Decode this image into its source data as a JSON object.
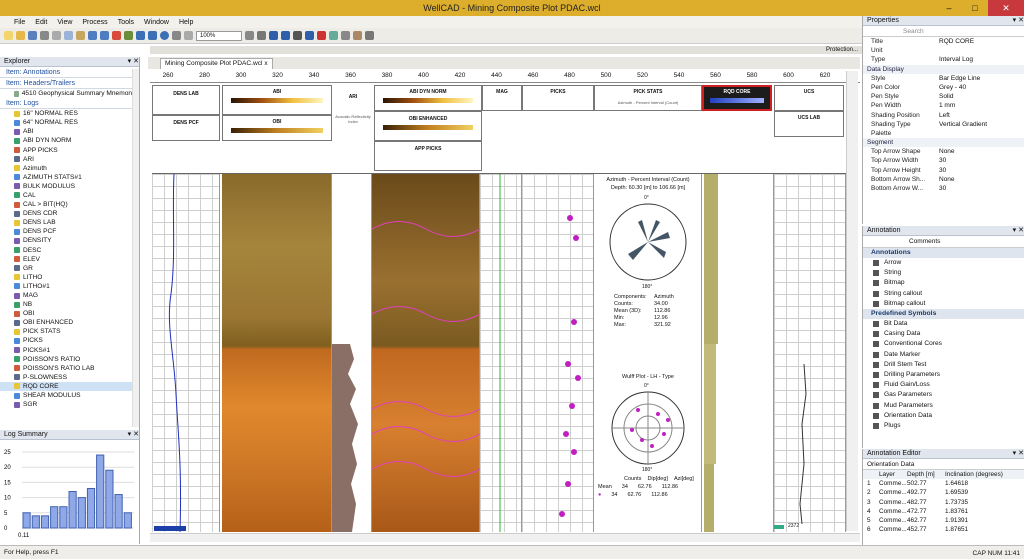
{
  "app": {
    "title": "WellCAD - Mining Composite Plot PDAC.wcl",
    "window_controls": [
      "–",
      "□",
      "✕"
    ]
  },
  "menu": [
    "File",
    "Edit",
    "View",
    "Process",
    "Tools",
    "Window",
    "Help"
  ],
  "toolbar": {
    "zoom": "100%",
    "protection": "Protection..."
  },
  "document": {
    "tab": "Mining Composite Plot PDAC.wcl",
    "close": "x"
  },
  "ruler": [
    "260",
    "280",
    "300",
    "320",
    "340",
    "360",
    "380",
    "400",
    "420",
    "440",
    "460",
    "480",
    "500",
    "520",
    "540",
    "560",
    "580",
    "600",
    "620"
  ],
  "explorer": {
    "title": "Explorer",
    "sections": {
      "annotations": "Item: Annotations",
      "headers": "Item: Headers/Trailers",
      "header_item": "4510 Geophysical Summary Mnemoni...",
      "logs": "Item: Logs"
    },
    "logs": [
      "16\" NORMAL RES",
      "64\" NORMAL RES",
      "ABI",
      "ABI DYN NORM",
      "APP PICKS",
      "ARI",
      "Azimuth",
      "AZIMUTH STATS#1",
      "BULK MODULUS",
      "CAL",
      "CAL > BIT(HQ)",
      "DENS CDR",
      "DENS LAB",
      "DENS PCF",
      "DENSITY",
      "DESC",
      "ELEV",
      "GR",
      "LITHO",
      "LITHO#1",
      "MAG",
      "NB",
      "OBI",
      "OBI ENHANCED",
      "PICK STATS",
      "PICKS",
      "PICKS#1",
      "POISSON'S RATIO",
      "POISSON'S RATIO LAB",
      "P-SLOWNESS",
      "RQD CORE",
      "SHEAR MODULUS",
      "SGR"
    ]
  },
  "log_summary": {
    "title": "Log Summary",
    "ylabels": [
      "25",
      "20",
      "15",
      "10",
      "5",
      "0"
    ],
    "xlabel": "0.11"
  },
  "chart_data": {
    "type": "bar",
    "values": [
      5,
      4,
      4,
      7,
      7,
      12,
      10,
      13,
      24,
      19,
      11,
      5
    ],
    "ylim": [
      0,
      25
    ]
  },
  "headers": {
    "dens_lab": "DENS LAB",
    "dens_pcf": "DENS PCF",
    "abi": "ABI",
    "obi": "OBI",
    "ari": "ARI",
    "ari_sub": "Acoustic Reflectivity Index",
    "abi_dyn": "ABI DYN NORM",
    "obi_enh": "OBI ENHANCED",
    "app_picks": "APP PICKS",
    "mag": "MAG",
    "picks": "PICKS",
    "pick_stats": "PICK STATS",
    "pick_stats_sub": "Azimuth - Percent Interval (Count)",
    "rqd": "RQD CORE",
    "ucs": "UCS",
    "ucs_lab": "UCS LAB"
  },
  "rose": {
    "title": "Azimuth - Percent Interval (Count)",
    "depth": "Depth: 60.30 [m] to 106.66 [m]",
    "n": "0°",
    "s": "180°",
    "stats": [
      [
        "Components:",
        "Azimuth"
      ],
      [
        "Counts:",
        "34.00"
      ],
      [
        "Mean (3D):",
        "112.86"
      ],
      [
        "Min:",
        "12.96"
      ],
      [
        "Max:",
        "321.92"
      ]
    ]
  },
  "wulff": {
    "title": "Wulff Plot - LH - Type",
    "n": "0°",
    "s": "180°",
    "headers": [
      "Counts",
      "Dip[deg]",
      "Azi[deg]"
    ],
    "mean_label": "Mean",
    "mean": [
      "34",
      "62.76",
      "112.86"
    ],
    "row2": [
      "34",
      "62.76",
      "112.86"
    ]
  },
  "depth_marker": "2372",
  "properties": {
    "title": "Properties",
    "search": "Search",
    "rows": [
      [
        "Title",
        "RQD CORE"
      ],
      [
        "Unit",
        ""
      ],
      [
        "Type",
        "Interval Log"
      ]
    ],
    "group": "Data Display",
    "display": [
      [
        "Style",
        "Bar Edge Line"
      ],
      [
        "Pen Color",
        "Grey - 40"
      ],
      [
        "Pen Style",
        "Solid"
      ],
      [
        "Pen Width",
        "1 mm"
      ],
      [
        "Shading Position",
        "Left"
      ],
      [
        "Shading Type",
        "Vertical Gradient"
      ],
      [
        "Palette",
        ""
      ]
    ],
    "segment": "Segment",
    "seg": [
      [
        "Top Arrow Shape",
        "None"
      ],
      [
        "Top Arrow Width",
        "30"
      ],
      [
        "Top Arrow Height",
        "30"
      ],
      [
        "Bottom Arrow Sh...",
        "None"
      ],
      [
        "Bottom Arrow W...",
        "30"
      ]
    ]
  },
  "annotation": {
    "title": "Annotation",
    "dropdown": "Comments",
    "group1": "Annotations",
    "items1": [
      "Arrow",
      "String",
      "Bitmap",
      "String callout",
      "Bitmap callout"
    ],
    "group2": "Predefined Symbols",
    "items2": [
      "Bit Data",
      "Casing Data",
      "Conventional Cores",
      "Date Marker",
      "Drill Stem Test",
      "Drilling Parameters",
      "Fluid Gain/Loss",
      "Gas Parameters",
      "Mud Parameters",
      "Orientation Data",
      "Plugs"
    ]
  },
  "orientation": {
    "title": "Annotation Editor",
    "dropdown": "Orientation Data",
    "headers": [
      "Layer",
      "Depth [m]",
      "Inclination (degrees)"
    ],
    "rows": [
      [
        "1",
        "Comme...",
        "502.77",
        "1.64618"
      ],
      [
        "2",
        "Comme...",
        "492.77",
        "1.69539"
      ],
      [
        "3",
        "Comme...",
        "482.77",
        "1.73735"
      ],
      [
        "4",
        "Comme...",
        "472.77",
        "1.83761"
      ],
      [
        "5",
        "Comme...",
        "462.77",
        "1.91391"
      ],
      [
        "6",
        "Comme...",
        "452.77",
        "1.87651"
      ]
    ]
  },
  "status": {
    "left": "For Help, press F1",
    "right": "CAP  NUM  11:41"
  },
  "colors": {
    "title": "#dcae2c",
    "accent": "#1f4f9f",
    "close": "#c7393c"
  }
}
